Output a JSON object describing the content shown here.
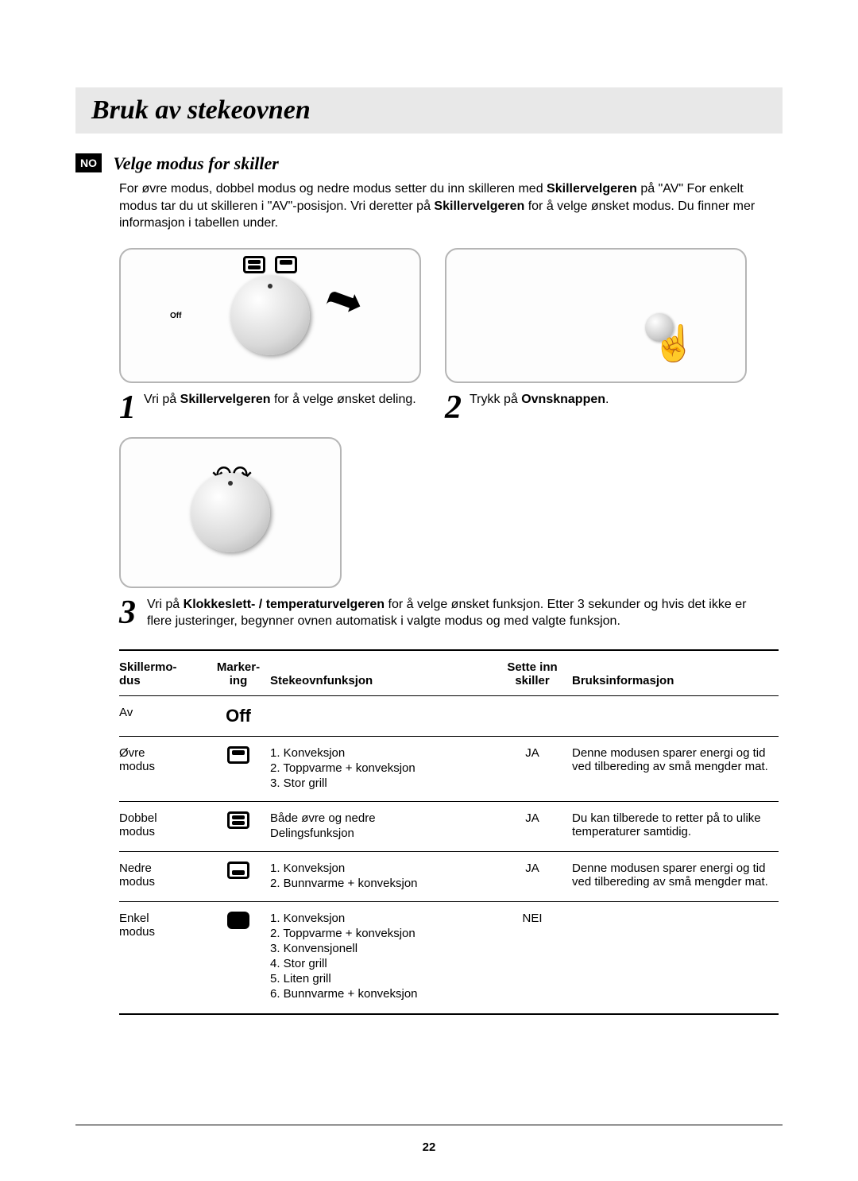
{
  "page": {
    "title": "Bruk av stekeovnen",
    "lang_code": "NO",
    "page_number": "22"
  },
  "section": {
    "heading": "Velge modus for skiller",
    "intro_a": "For øvre modus, dobbel modus og nedre modus setter du inn skilleren med ",
    "intro_bold1": "Skillervelgeren",
    "intro_b": " på \"AV\"  For enkelt modus tar du ut skilleren i \"AV\"-posisjon.  Vri deretter på ",
    "intro_bold2": "Skillervelgeren",
    "intro_c": " for å velge ønsket modus. Du finner mer informasjon i tabellen under."
  },
  "dial_off_label": "Off",
  "steps": {
    "s1_num": "1",
    "s1_a": "Vri på ",
    "s1_bold": "Skillervelgeren",
    "s1_b": " for å velge ønsket deling.",
    "s2_num": "2",
    "s2_a": "Trykk på ",
    "s2_bold": "Ovnsknappen",
    "s2_b": ".",
    "s3_num": "3",
    "s3_a": "Vri på ",
    "s3_bold": "Klokkeslett- / temperaturvelgeren",
    "s3_b": " for å velge ønsket funksjon. Etter 3 sekunder og hvis det ikke er flere justeringer, begynner ovnen automatisk i valgte modus og med valgte funksjon."
  },
  "table": {
    "headers": {
      "h1a": "Skillermo-",
      "h1b": "dus",
      "h2a": "Marker-",
      "h2b": "ing",
      "h3": "Stekeovnfunksjon",
      "h4a": "Sette inn",
      "h4b": "skiller",
      "h5": "Bruksinformasjon"
    },
    "rows": {
      "r0": {
        "mode": "Av",
        "mark_label": "Off"
      },
      "r1": {
        "mode_a": "Øvre",
        "mode_b": "modus",
        "f1": "1.  Konveksjon",
        "f2": "2.  Toppvarme + konveksjon",
        "f3": "3.  Stor grill",
        "insert": "JA",
        "info": "Denne modusen sparer energi og tid ved tilbereding av små mengder mat."
      },
      "r2": {
        "mode_a": "Dobbel",
        "mode_b": "modus",
        "f1": "Både øvre og nedre",
        "f2": "Delingsfunksjon",
        "insert": "JA",
        "info": "Du kan tilberede to retter på to ulike temperaturer samtidig."
      },
      "r3": {
        "mode_a": "Nedre",
        "mode_b": "modus",
        "f1": "1.  Konveksjon",
        "f2": "2.  Bunnvarme + konveksjon",
        "insert": "JA",
        "info": "Denne modusen sparer energi og tid ved tilbereding av små mengder mat."
      },
      "r4": {
        "mode_a": "Enkel",
        "mode_b": "modus",
        "f1": "1.  Konveksjon",
        "f2": "2.  Toppvarme + konveksjon",
        "f3": "3.  Konvensjonell",
        "f4": "4.  Stor grill",
        "f5": "5.  Liten grill",
        "f6": "6.  Bunnvarme + konveksjon",
        "insert": "NEI",
        "info": ""
      }
    }
  },
  "colors": {
    "title_bg": "#e8e8e8",
    "panel_border": "#b5b5b5",
    "text": "#000000"
  }
}
